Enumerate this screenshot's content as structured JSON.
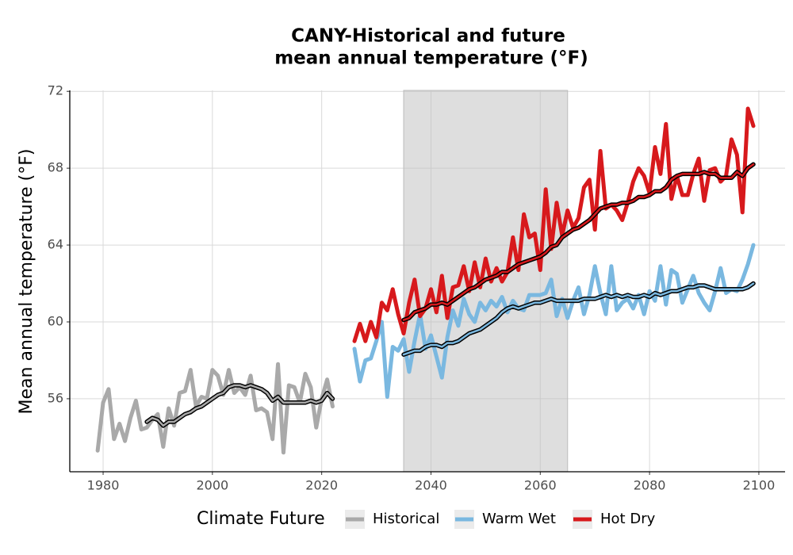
{
  "chart_data": {
    "type": "line",
    "title": [
      "CANY-Historical and future",
      "mean annual temperature (°F)"
    ],
    "y_label": "Mean annual temperature (°F)",
    "legend_title": "Climate Future",
    "legend": "bottom",
    "grid": true,
    "xlim": [
      1973.9,
      2104.8
    ],
    "ylim": [
      52.2,
      72.05
    ],
    "xticks": [
      1980,
      2000,
      2020,
      2040,
      2060,
      2080,
      2100
    ],
    "yticks": [
      56,
      60,
      64,
      68,
      72
    ],
    "shade": [
      2035,
      2065
    ],
    "series": [
      {
        "name": "Historical",
        "color": "#a9a9a9",
        "x": [
          1979,
          1980,
          1981,
          1982,
          1983,
          1984,
          1985,
          1986,
          1987,
          1988,
          1989,
          1990,
          1991,
          1992,
          1993,
          1994,
          1995,
          1996,
          1997,
          1998,
          1999,
          2000,
          2001,
          2002,
          2003,
          2004,
          2005,
          2006,
          2007,
          2008,
          2009,
          2010,
          2011,
          2012,
          2013,
          2014,
          2015,
          2016,
          2017,
          2018,
          2019,
          2020,
          2021,
          2022
        ],
        "values": [
          53.3,
          55.8,
          56.5,
          53.9,
          54.7,
          53.8,
          55.0,
          55.9,
          54.4,
          54.5,
          54.9,
          55.2,
          53.5,
          55.5,
          54.6,
          56.3,
          56.4,
          57.5,
          55.6,
          56.1,
          56.0,
          57.5,
          57.2,
          56.2,
          57.5,
          56.3,
          56.6,
          56.2,
          57.2,
          55.4,
          55.5,
          55.3,
          53.9,
          57.8,
          53.2,
          56.7,
          56.6,
          55.8,
          57.3,
          56.6,
          54.5,
          56.0,
          57.0,
          55.6
        ],
        "smooth_x": [
          1988,
          1989,
          1990,
          1991,
          1992,
          1993,
          1994,
          1995,
          1996,
          1997,
          1998,
          1999,
          2000,
          2001,
          2002,
          2003,
          2004,
          2005,
          2006,
          2007,
          2008,
          2009,
          2010,
          2011,
          2012,
          2013,
          2014,
          2015,
          2016,
          2017,
          2018,
          2019,
          2020,
          2021,
          2022
        ],
        "smooth_values": [
          54.8,
          55.0,
          54.9,
          54.6,
          54.8,
          54.8,
          55.0,
          55.2,
          55.3,
          55.5,
          55.6,
          55.8,
          56.0,
          56.2,
          56.3,
          56.6,
          56.7,
          56.7,
          56.6,
          56.7,
          56.6,
          56.5,
          56.3,
          55.9,
          56.1,
          55.8,
          55.8,
          55.8,
          55.8,
          55.8,
          55.9,
          55.8,
          55.9,
          56.3,
          56.0
        ]
      },
      {
        "name": "Warm Wet",
        "color": "#7ab8e0",
        "x": [
          2026,
          2027,
          2028,
          2029,
          2030,
          2031,
          2032,
          2033,
          2034,
          2035,
          2036,
          2037,
          2038,
          2039,
          2040,
          2041,
          2042,
          2043,
          2044,
          2045,
          2046,
          2047,
          2048,
          2049,
          2050,
          2051,
          2052,
          2053,
          2054,
          2055,
          2056,
          2057,
          2058,
          2059,
          2060,
          2061,
          2062,
          2063,
          2064,
          2065,
          2066,
          2067,
          2068,
          2069,
          2070,
          2071,
          2072,
          2073,
          2074,
          2075,
          2076,
          2077,
          2078,
          2079,
          2080,
          2081,
          2082,
          2083,
          2084,
          2085,
          2086,
          2087,
          2088,
          2089,
          2090,
          2091,
          2092,
          2093,
          2094,
          2095,
          2096,
          2097,
          2098,
          2099
        ],
        "values": [
          58.6,
          56.9,
          58.0,
          58.1,
          59.0,
          60.0,
          56.1,
          58.7,
          58.5,
          59.1,
          57.4,
          59.0,
          60.4,
          58.6,
          59.3,
          58.2,
          57.1,
          59.2,
          60.6,
          59.8,
          61.2,
          60.4,
          60.0,
          61.0,
          60.6,
          61.1,
          60.8,
          61.3,
          60.5,
          61.1,
          60.7,
          60.6,
          61.4,
          61.4,
          61.4,
          61.5,
          62.2,
          60.3,
          61.2,
          60.2,
          61.1,
          61.8,
          60.4,
          61.4,
          62.9,
          61.5,
          60.4,
          62.9,
          60.6,
          61.0,
          61.2,
          60.7,
          61.4,
          60.4,
          61.6,
          61.1,
          62.9,
          60.9,
          62.7,
          62.5,
          61.0,
          61.7,
          62.4,
          61.5,
          61.0,
          60.6,
          61.6,
          62.8,
          61.5,
          61.7,
          61.6,
          62.2,
          63.0,
          64.0
        ],
        "smooth_x": [
          2035,
          2036,
          2037,
          2038,
          2039,
          2040,
          2041,
          2042,
          2043,
          2044,
          2045,
          2046,
          2047,
          2048,
          2049,
          2050,
          2051,
          2052,
          2053,
          2054,
          2055,
          2056,
          2057,
          2058,
          2059,
          2060,
          2061,
          2062,
          2063,
          2064,
          2065,
          2066,
          2067,
          2068,
          2069,
          2070,
          2071,
          2072,
          2073,
          2074,
          2075,
          2076,
          2077,
          2078,
          2079,
          2080,
          2081,
          2082,
          2083,
          2084,
          2085,
          2086,
          2087,
          2088,
          2089,
          2090,
          2091,
          2092,
          2093,
          2094,
          2095,
          2096,
          2097,
          2098,
          2099
        ],
        "smooth_values": [
          58.3,
          58.4,
          58.5,
          58.5,
          58.7,
          58.8,
          58.8,
          58.7,
          58.9,
          58.9,
          59.0,
          59.2,
          59.4,
          59.5,
          59.6,
          59.8,
          60.0,
          60.2,
          60.5,
          60.7,
          60.8,
          60.7,
          60.8,
          60.9,
          61.0,
          61.0,
          61.1,
          61.2,
          61.1,
          61.1,
          61.1,
          61.1,
          61.1,
          61.2,
          61.2,
          61.2,
          61.3,
          61.4,
          61.3,
          61.4,
          61.3,
          61.4,
          61.3,
          61.3,
          61.4,
          61.3,
          61.5,
          61.4,
          61.5,
          61.6,
          61.6,
          61.7,
          61.8,
          61.8,
          61.9,
          61.9,
          61.8,
          61.7,
          61.7,
          61.7,
          61.7,
          61.7,
          61.7,
          61.8,
          62.0
        ]
      },
      {
        "name": "Hot Dry",
        "color": "#d7191c",
        "x": [
          2026,
          2027,
          2028,
          2029,
          2030,
          2031,
          2032,
          2033,
          2034,
          2035,
          2036,
          2037,
          2038,
          2039,
          2040,
          2041,
          2042,
          2043,
          2044,
          2045,
          2046,
          2047,
          2048,
          2049,
          2050,
          2051,
          2052,
          2053,
          2054,
          2055,
          2056,
          2057,
          2058,
          2059,
          2060,
          2061,
          2062,
          2063,
          2064,
          2065,
          2066,
          2067,
          2068,
          2069,
          2070,
          2071,
          2072,
          2073,
          2074,
          2075,
          2076,
          2077,
          2078,
          2079,
          2080,
          2081,
          2082,
          2083,
          2084,
          2085,
          2086,
          2087,
          2088,
          2089,
          2090,
          2091,
          2092,
          2093,
          2094,
          2095,
          2096,
          2097,
          2098,
          2099
        ],
        "values": [
          59.0,
          59.9,
          59.0,
          60.0,
          59.2,
          61.0,
          60.6,
          61.7,
          60.4,
          59.4,
          61.0,
          62.2,
          60.3,
          60.7,
          61.7,
          60.5,
          62.4,
          60.2,
          61.8,
          61.9,
          62.9,
          61.6,
          63.1,
          61.8,
          63.3,
          62.1,
          62.8,
          62.1,
          62.6,
          64.4,
          62.7,
          65.6,
          64.4,
          64.6,
          62.7,
          66.9,
          63.8,
          66.2,
          64.5,
          65.8,
          64.9,
          65.4,
          67.0,
          67.4,
          64.8,
          68.9,
          65.9,
          66.1,
          65.8,
          65.3,
          66.2,
          67.3,
          68.0,
          67.6,
          66.7,
          69.1,
          67.7,
          70.3,
          66.4,
          67.6,
          66.6,
          66.6,
          67.7,
          68.5,
          66.3,
          67.9,
          68.0,
          67.3,
          67.6,
          69.5,
          68.7,
          65.7,
          71.1,
          70.2
        ],
        "smooth_x": [
          2035,
          2036,
          2037,
          2038,
          2039,
          2040,
          2041,
          2042,
          2043,
          2044,
          2045,
          2046,
          2047,
          2048,
          2049,
          2050,
          2051,
          2052,
          2053,
          2054,
          2055,
          2056,
          2057,
          2058,
          2059,
          2060,
          2061,
          2062,
          2063,
          2064,
          2065,
          2066,
          2067,
          2068,
          2069,
          2070,
          2071,
          2072,
          2073,
          2074,
          2075,
          2076,
          2077,
          2078,
          2079,
          2080,
          2081,
          2082,
          2083,
          2084,
          2085,
          2086,
          2087,
          2088,
          2089,
          2090,
          2091,
          2092,
          2093,
          2094,
          2095,
          2096,
          2097,
          2098,
          2099
        ],
        "smooth_values": [
          60.1,
          60.2,
          60.5,
          60.6,
          60.7,
          60.9,
          60.9,
          61.0,
          60.9,
          61.1,
          61.3,
          61.5,
          61.7,
          61.8,
          62.0,
          62.2,
          62.3,
          62.4,
          62.6,
          62.6,
          62.8,
          63.0,
          63.1,
          63.2,
          63.3,
          63.4,
          63.6,
          63.9,
          64.0,
          64.4,
          64.6,
          64.8,
          64.9,
          65.1,
          65.3,
          65.6,
          65.9,
          66.0,
          66.1,
          66.1,
          66.2,
          66.2,
          66.3,
          66.5,
          66.5,
          66.6,
          66.8,
          66.8,
          67.0,
          67.4,
          67.6,
          67.7,
          67.7,
          67.7,
          67.7,
          67.8,
          67.7,
          67.7,
          67.5,
          67.5,
          67.5,
          67.8,
          67.6,
          68.0,
          68.2
        ]
      }
    ]
  }
}
